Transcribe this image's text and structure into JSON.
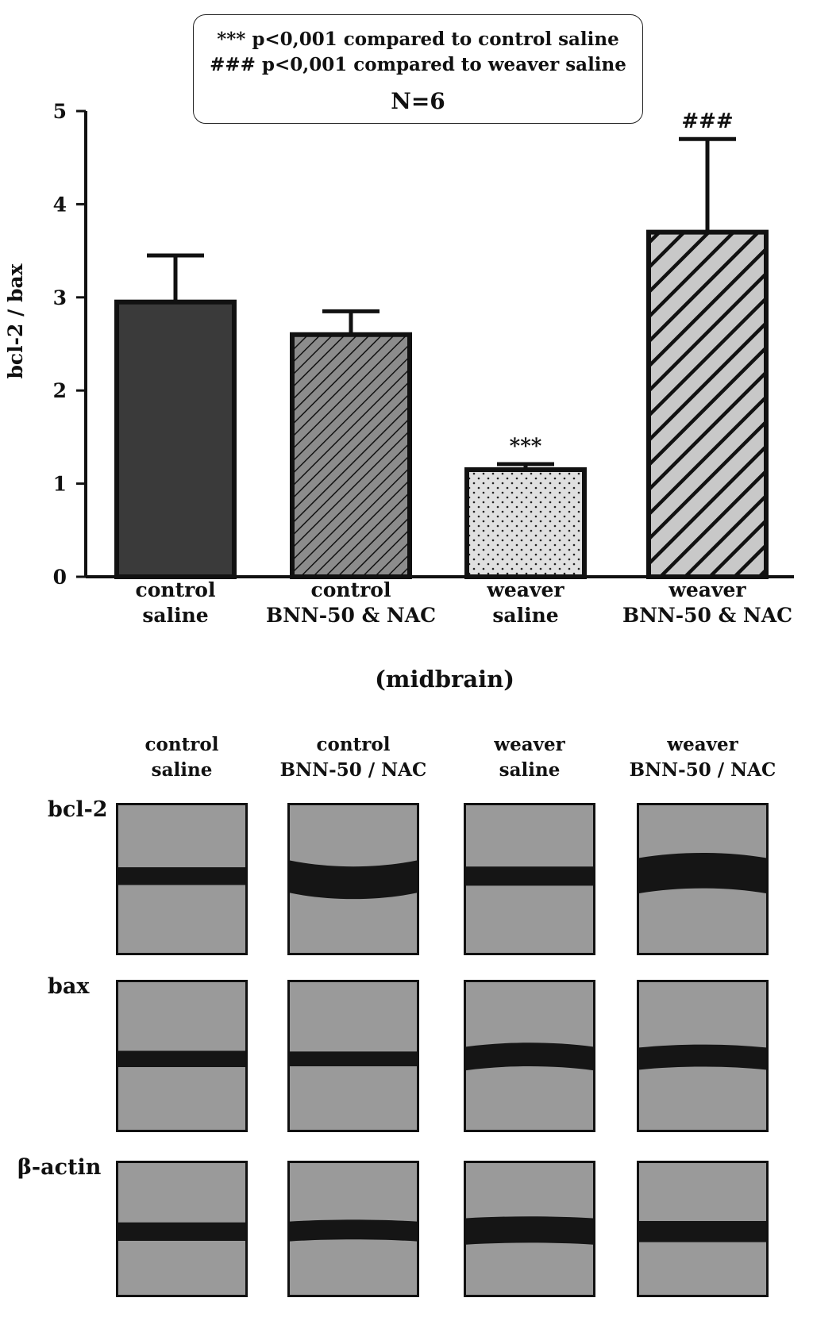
{
  "chart_data": {
    "type": "bar",
    "categories": [
      [
        "control",
        "saline"
      ],
      [
        "control",
        "BNN-50 & NAC"
      ],
      [
        "weaver",
        "saline"
      ],
      [
        "weaver",
        "BNN-50 & NAC"
      ]
    ],
    "values": [
      2.95,
      2.6,
      1.15,
      3.7
    ],
    "errors": [
      0.5,
      0.25,
      0.06,
      1.0
    ],
    "significance": [
      "",
      "",
      "***",
      "###"
    ],
    "fills": [
      "dark-solid",
      "fine-diagonal-hatch",
      "dotted",
      "wide-diagonal-hatch"
    ],
    "ylabel": "bcl-2 / bax",
    "xlabel": "(midbrain)",
    "ylim": [
      0,
      5
    ],
    "yticks": [
      0,
      1,
      2,
      3,
      4,
      5
    ],
    "legend": {
      "lines": [
        "***  p<0,001 compared to control saline",
        "### p<0,001 compared to weaver saline"
      ],
      "n_label": "N=6"
    }
  },
  "blots": {
    "lanes": [
      [
        "control",
        "saline"
      ],
      [
        "control",
        "BNN-50 / NAC"
      ],
      [
        "weaver",
        "saline"
      ],
      [
        "weaver",
        "BNN-50 / NAC"
      ]
    ],
    "rows": [
      "bcl-2",
      "bax",
      "β-actin"
    ]
  },
  "colors": {
    "dark_bar": "#3a3a3a",
    "hatch_bar": "#8c8c8c",
    "dot_bar": "#e0e0e0",
    "wide_hatch_bar": "#c8c8c8",
    "blot_background": "#9a9a9a",
    "band": "#151515"
  }
}
